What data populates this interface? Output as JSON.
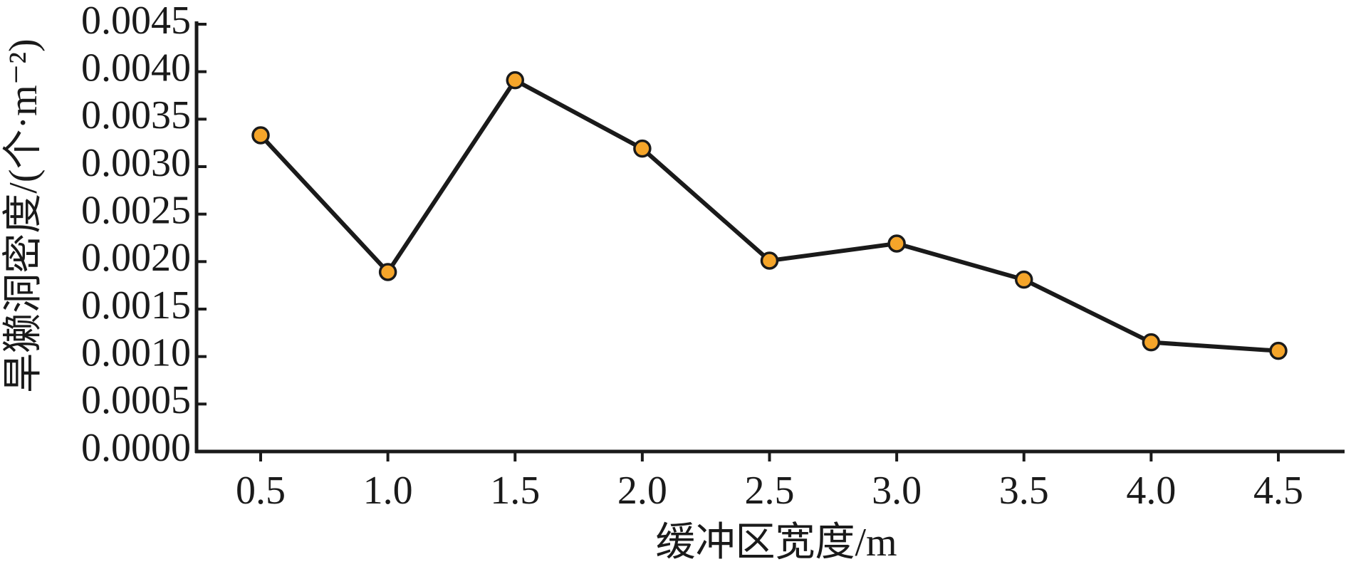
{
  "chart_data": {
    "type": "line",
    "x_label": "缓冲区宽度/m",
    "y_label": "旱獭洞密度/(个·m⁻²)",
    "categories": [
      "0.5",
      "1.0",
      "1.5",
      "2.0",
      "2.5",
      "3.0",
      "3.5",
      "4.0",
      "4.5"
    ],
    "series": [
      {
        "color": "#f5a52a",
        "values": [
          0.00333,
          0.00189,
          0.00391,
          0.00319,
          0.00201,
          0.00219,
          0.00181,
          0.00115,
          0.00106
        ]
      }
    ],
    "ylim": [
      0,
      0.0045
    ],
    "yticks": [
      {
        "value": 0,
        "label": "0.0000"
      },
      {
        "value": 0.0005,
        "label": "0.0005"
      },
      {
        "value": 0.001,
        "label": "0.0010"
      },
      {
        "value": 0.0015,
        "label": "0.0015"
      },
      {
        "value": 0.002,
        "label": "0.0020"
      },
      {
        "value": 0.0025,
        "label": "0.0025"
      },
      {
        "value": 0.003,
        "label": "0.0030"
      },
      {
        "value": 0.0035,
        "label": "0.0035"
      },
      {
        "value": 0.004,
        "label": "0.0040"
      },
      {
        "value": 0.0045,
        "label": "0.0045"
      }
    ]
  }
}
